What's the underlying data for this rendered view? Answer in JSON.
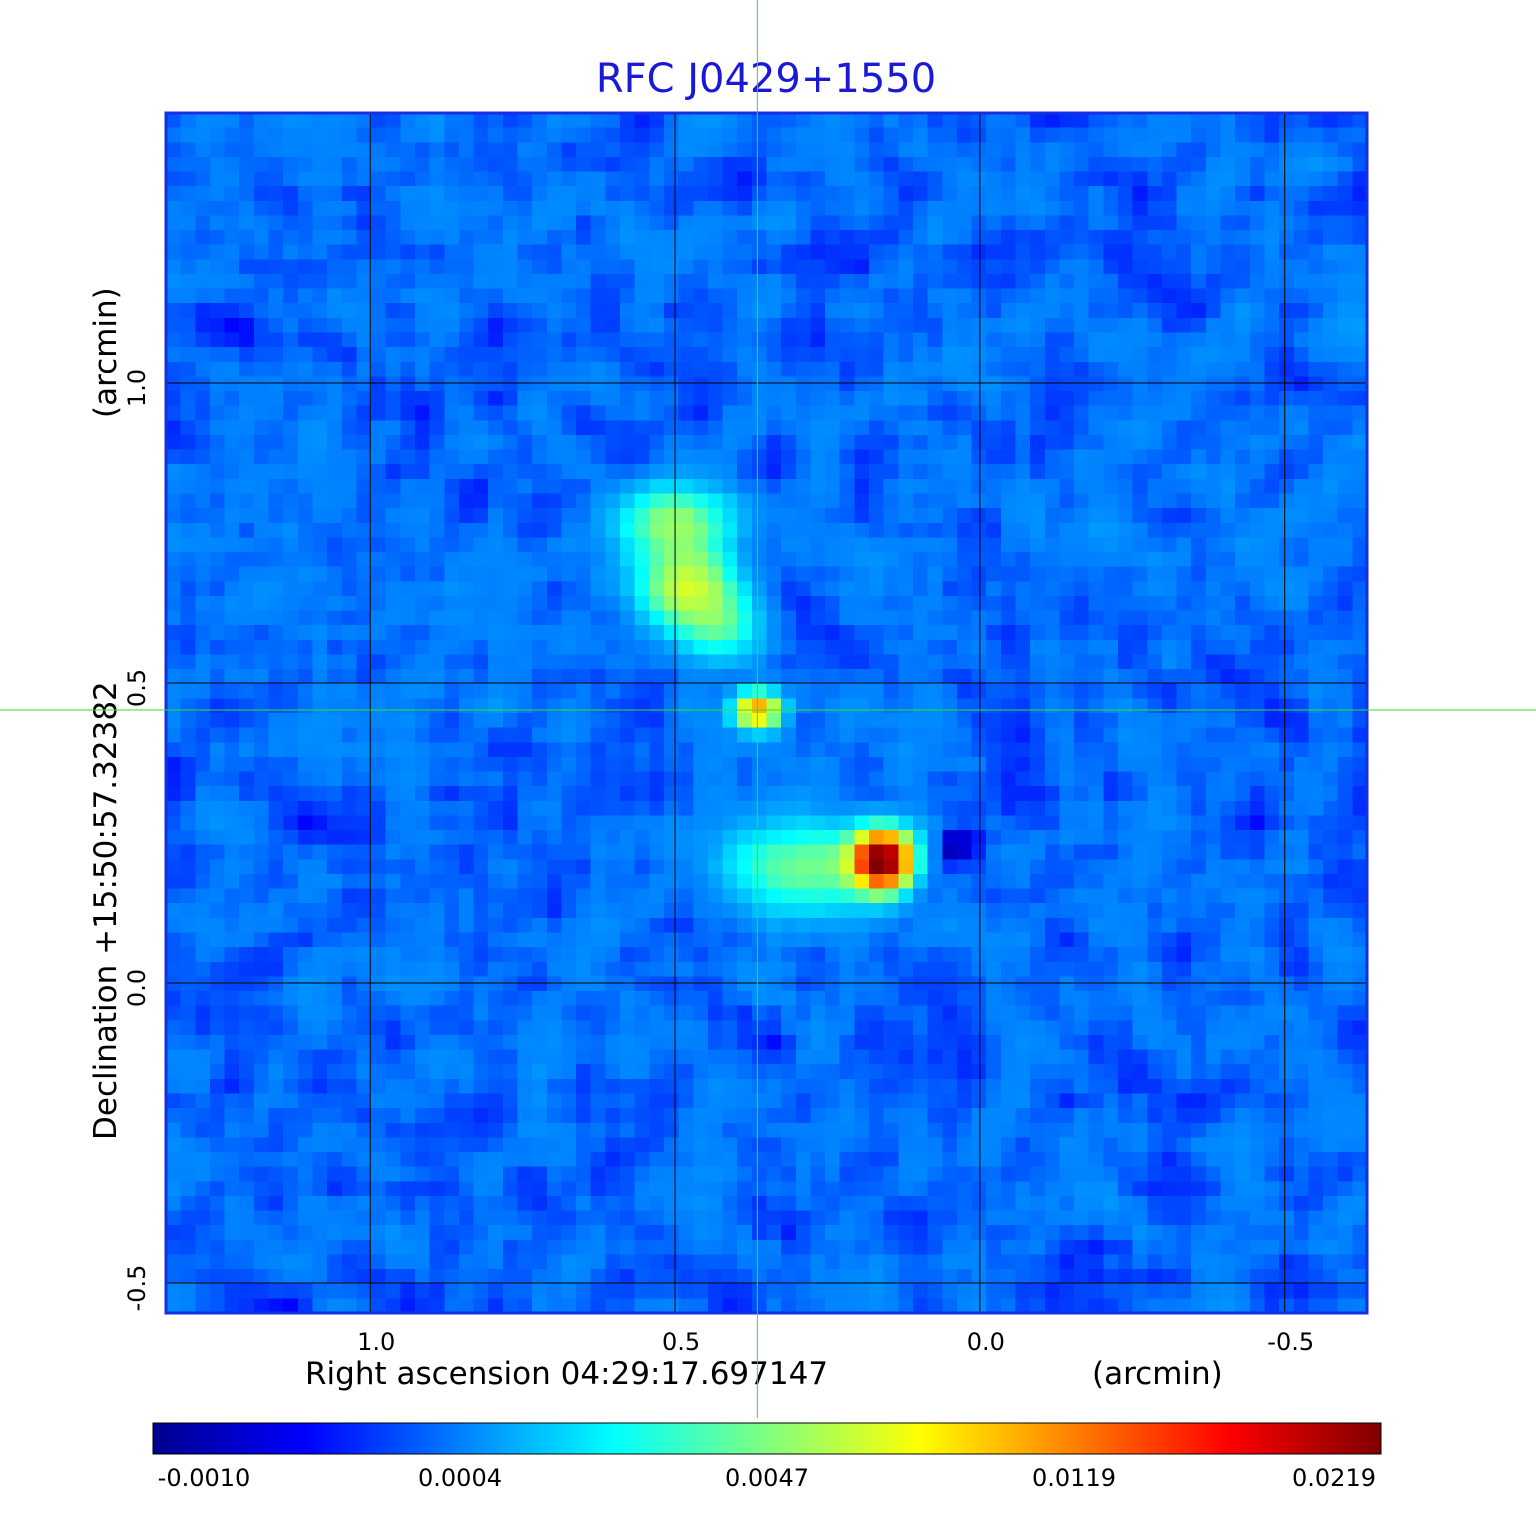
{
  "chart_data": {
    "type": "heatmap",
    "title": "RFC J0429+1550",
    "xlabel": "Right ascension  04:29:17.697147",
    "xunit": "(arcmin)",
    "ylabel": "Declination  +15:50:57.32382",
    "yunit": "(arcmin)",
    "xlim": [
      1.335,
      -0.635
    ],
    "ylim": [
      -0.55,
      1.45
    ],
    "xticks": [
      1.0,
      0.5,
      0.0,
      -0.5
    ],
    "xtick_labels": [
      "1.0",
      "0.5",
      "0.0",
      "-0.5"
    ],
    "yticks": [
      1.0,
      0.5,
      0.0,
      -0.5
    ],
    "ytick_labels": [
      "1.0",
      "0.5",
      "0.0",
      "-0.5"
    ],
    "grid": true,
    "crosshair": {
      "x": 0.365,
      "y": 0.455
    },
    "colormap": "jet",
    "colorbar": {
      "ticks": [
        -0.001,
        0.0004,
        0.0047,
        0.0119,
        0.0219
      ],
      "tick_labels": [
        "-0.0010",
        "0.0004",
        "0.0047",
        "0.0119",
        "0.0219"
      ]
    },
    "background_level": 0.0003,
    "sources": [
      {
        "x": 0.5,
        "y": 0.765,
        "peak": 0.005,
        "sx": 0.06,
        "sy": 0.045
      },
      {
        "x": 0.48,
        "y": 0.66,
        "peak": 0.006,
        "sx": 0.05,
        "sy": 0.04
      },
      {
        "x": 0.43,
        "y": 0.595,
        "peak": 0.0035,
        "sx": 0.045,
        "sy": 0.04
      },
      {
        "x": 0.365,
        "y": 0.455,
        "peak": 0.011,
        "sx": 0.025,
        "sy": 0.02
      },
      {
        "x": 0.16,
        "y": 0.205,
        "peak": 0.0219,
        "sx": 0.03,
        "sy": 0.03
      },
      {
        "x": 0.28,
        "y": 0.19,
        "peak": 0.0045,
        "sx": 0.09,
        "sy": 0.05
      },
      {
        "x": 0.038,
        "y": 0.225,
        "peak": -0.001,
        "sx": 0.025,
        "sy": 0.02
      }
    ],
    "colors": {
      "title": "#1a1ad6",
      "frame": "#1530e0",
      "crosshair": "#33dd33",
      "grid": "#000000",
      "text": "#000000"
    }
  }
}
